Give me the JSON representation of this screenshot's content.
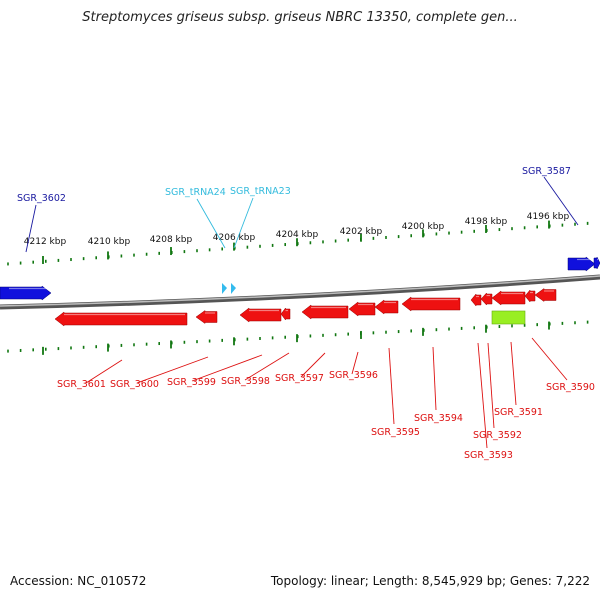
{
  "title": "Streptomyces griseus subsp. griseus NBRC 13350, complete gen...",
  "footer": {
    "accession": "Accession: NC_010572",
    "topology": "Topology: linear; Length: 8,545,929 bp; Genes: 7,222"
  },
  "colors": {
    "forward_gene": "#1010dd",
    "reverse_gene": "#ee1111",
    "trna": "#33bbee",
    "misc_feature": "#99ee22",
    "ticks": "#117711",
    "backbone": "#777777"
  },
  "scale_labels": [
    "4212 kbp",
    "4210 kbp",
    "4208 kbp",
    "4206 kbp",
    "4204 kbp",
    "4202 kbp",
    "4200 kbp",
    "4198 kbp",
    "4196 kbp"
  ],
  "forward_labels": [
    {
      "text": "SGR_3602",
      "color": "#1a1aa0"
    },
    {
      "text": "SGR_tRNA24",
      "color": "#33bbdd"
    },
    {
      "text": "SGR_tRNA23",
      "color": "#33bbdd"
    },
    {
      "text": "SGR_3587",
      "color": "#1a1aa0"
    }
  ],
  "reverse_labels": [
    {
      "text": "SGR_3601"
    },
    {
      "text": "SGR_3600"
    },
    {
      "text": "SGR_3599"
    },
    {
      "text": "SGR_3598"
    },
    {
      "text": "SGR_3597"
    },
    {
      "text": "SGR_3596"
    },
    {
      "text": "SGR_3595"
    },
    {
      "text": "SGR_3594"
    },
    {
      "text": "SGR_3593"
    },
    {
      "text": "SGR_3592"
    },
    {
      "text": "SGR_3591"
    },
    {
      "text": "SGR_3590"
    }
  ]
}
